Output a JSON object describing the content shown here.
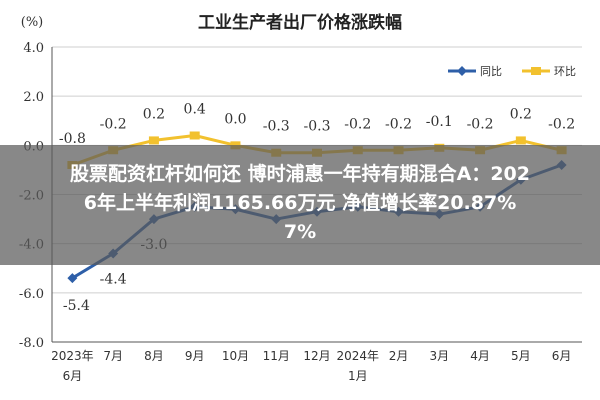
{
  "chart_data": {
    "type": "line",
    "title": "工业生产者出厂价格涨跌幅",
    "ylabel": "(%)",
    "ylim": [
      -8.0,
      4.0
    ],
    "yticks": [
      -8.0,
      -6.0,
      -4.0,
      -2.0,
      0.0,
      2.0,
      4.0
    ],
    "ytick_labels": [
      "-8.0",
      "-6.0",
      "-4.0",
      "-2.0",
      "0.0",
      "2.0",
      "4.0"
    ],
    "categories": [
      "2023年6月",
      "7月",
      "8月",
      "9月",
      "10月",
      "11月",
      "12月",
      "2024年1月",
      "2月",
      "3月",
      "4月",
      "5月",
      "6月"
    ],
    "category_labels": [
      [
        "2023年",
        "6月"
      ],
      [
        "7月"
      ],
      [
        "8月"
      ],
      [
        "9月"
      ],
      [
        "10月"
      ],
      [
        "11月"
      ],
      [
        "12月"
      ],
      [
        "2024年",
        "1月"
      ],
      [
        "2月"
      ],
      [
        "3月"
      ],
      [
        "4月"
      ],
      [
        "5月"
      ],
      [
        "6月"
      ]
    ],
    "grid": true,
    "legend_position": "top-right",
    "series": [
      {
        "name": "同比",
        "color": "#2e5fa8",
        "values": [
          -5.4,
          -4.4,
          -3.0,
          -2.5,
          -2.6,
          -3.0,
          -2.7,
          -2.5,
          -2.7,
          -2.8,
          -2.5,
          -1.4,
          -0.8
        ],
        "labels": [
          "-5.4",
          "-4.4",
          "-3.0",
          null,
          null,
          null,
          null,
          null,
          null,
          null,
          null,
          null,
          null
        ]
      },
      {
        "name": "环比",
        "color": "#f2c12e",
        "values": [
          -0.8,
          -0.2,
          0.2,
          0.4,
          0.0,
          -0.3,
          -0.3,
          -0.2,
          -0.2,
          -0.1,
          -0.2,
          0.2,
          -0.2
        ],
        "labels": [
          "-0.8",
          "-0.2",
          "0.2",
          "0.4",
          "0.0",
          "-0.3",
          "-0.3",
          "-0.2",
          "-0.2",
          "-0.1",
          "-0.2",
          "0.2",
          "-0.2"
        ]
      }
    ]
  },
  "overlay": {
    "text": "股票配资杠杆如何还 博时浦惠一年持有期混合A：202\n6年上半年利润1165.66万元 净值增长率20.87%\n7%"
  }
}
